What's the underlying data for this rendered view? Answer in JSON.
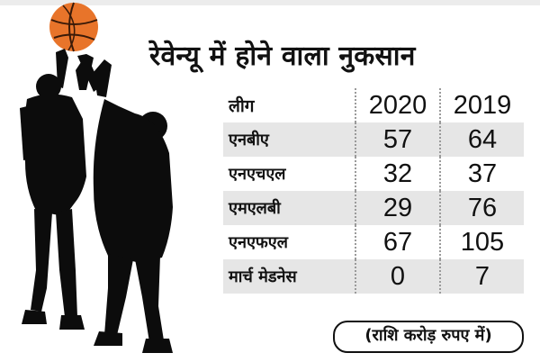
{
  "title": "रेवेन्यू में होने वाला नुकसान",
  "table": {
    "headers": [
      "लीग",
      "2020",
      "2019"
    ],
    "rows": [
      {
        "league": "एनबीए",
        "v2020": "57",
        "v2019": "64"
      },
      {
        "league": "एनएचएल",
        "v2020": "32",
        "v2019": "37"
      },
      {
        "league": "एमएलबी",
        "v2020": "29",
        "v2019": "76"
      },
      {
        "league": "एनएफएल",
        "v2020": "67",
        "v2019": "105"
      },
      {
        "league": "मार्च मेडनेस",
        "v2020": "0",
        "v2019": "7"
      }
    ]
  },
  "note": "(राशि करोड़ रुपए में)",
  "colors": {
    "ball": "#e8742a",
    "silhouette": "#0c0c0c",
    "row_shade": "#e6e6e6"
  },
  "icons": [
    "basketball-icon",
    "player-silhouette"
  ]
}
